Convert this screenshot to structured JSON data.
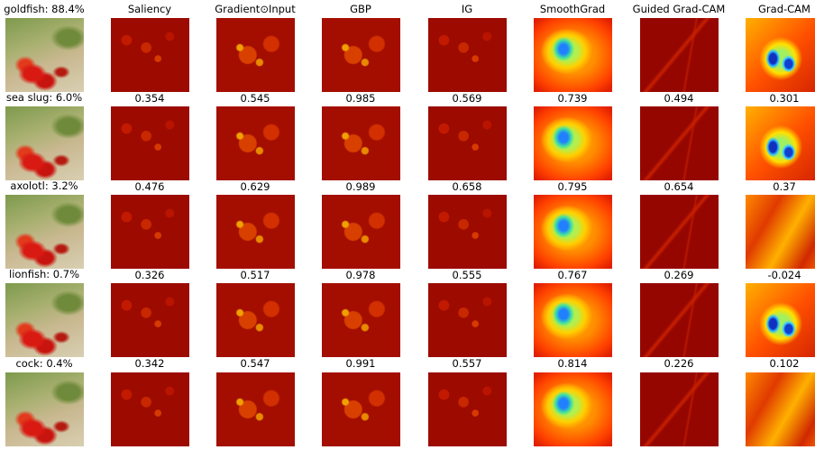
{
  "columns": [
    "Saliency",
    "Gradient⊙Input",
    "GBP",
    "IG",
    "SmoothGrad",
    "Guided Grad-CAM",
    "Grad-CAM"
  ],
  "rows": [
    {
      "label": "goldfish: 88.4%",
      "scores": [
        "0.354",
        "0.545",
        "0.985",
        "0.569",
        "0.739",
        "0.494",
        "0.301"
      ]
    },
    {
      "label": "sea slug: 6.0%",
      "scores": [
        "0.476",
        "0.629",
        "0.989",
        "0.658",
        "0.795",
        "0.654",
        "0.37"
      ]
    },
    {
      "label": "axolotl: 3.2%",
      "scores": [
        "0.326",
        "0.517",
        "0.978",
        "0.555",
        "0.767",
        "0.269",
        "-0.024"
      ]
    },
    {
      "label": "lionfish: 0.7%",
      "scores": [
        "0.342",
        "0.547",
        "0.991",
        "0.557",
        "0.814",
        "0.226",
        "0.102"
      ]
    },
    {
      "label": "cock: 0.4%",
      "scores": []
    }
  ]
}
